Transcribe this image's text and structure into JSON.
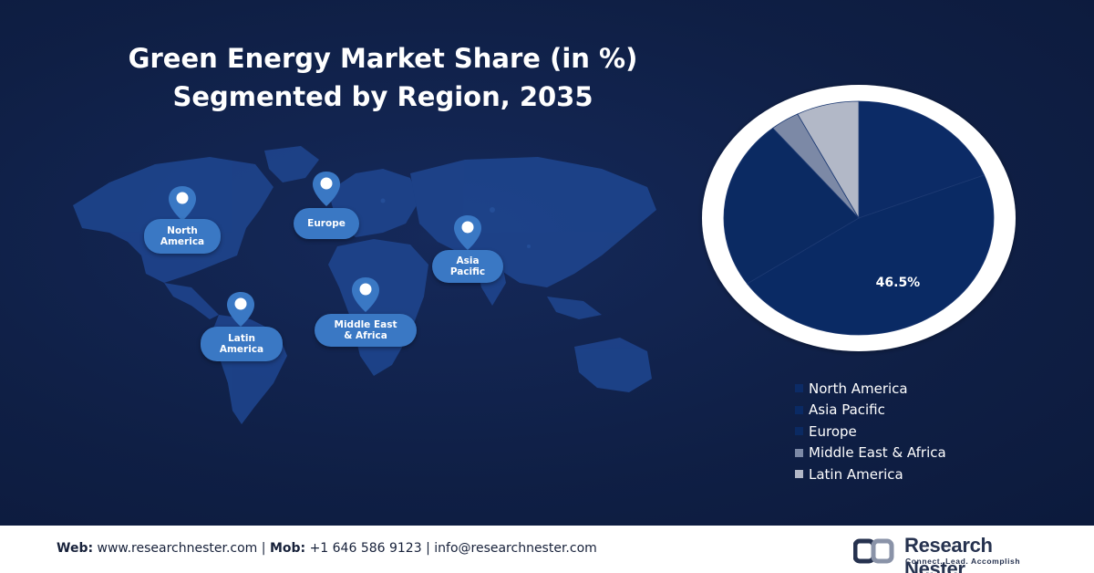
{
  "title": {
    "line1": "Green Energy Market Share (in %)",
    "line2": "Segmented by Region, 2035"
  },
  "map_pins": [
    {
      "id": "north-america",
      "label": "North America"
    },
    {
      "id": "europe",
      "label": "Europe"
    },
    {
      "id": "asia-pacific",
      "label": "Asia Pacific"
    },
    {
      "id": "middle-east-africa",
      "label": "Middle East & Africa"
    },
    {
      "id": "latin-america",
      "label": "Latin America"
    }
  ],
  "chart_data": {
    "type": "pie",
    "title": "Green Energy Market Share (in %) Segmented by Region, 2035",
    "categories": [
      "North America",
      "Asia Pacific",
      "Europe",
      "Middle East & Africa",
      "Latin America"
    ],
    "values": [
      19.0,
      46.5,
      23.5,
      3.5,
      7.5
    ],
    "data_labels": [
      "",
      "46.5%",
      "",
      "",
      ""
    ],
    "colors": [
      "#0c2b66",
      "#0a2a64",
      "#0b2a62",
      "#7c89a6",
      "#b2b8c7"
    ],
    "legend_position": "bottom-right"
  },
  "legend": {
    "swatch_colors": [
      "#0c2b66",
      "#0a2a64",
      "#0b2a62",
      "#7c89a6",
      "#b2b8c7"
    ]
  },
  "footer": {
    "web_label": "Web:",
    "web_value": "www.researchnester.com",
    "mob_label": "Mob:",
    "mob_value": "+1 646 586 9123",
    "email": "info@researchnester.com",
    "separator": "|",
    "logo_name": "Research Nester",
    "logo_tagline": "Connect. Lead. Accomplish"
  }
}
